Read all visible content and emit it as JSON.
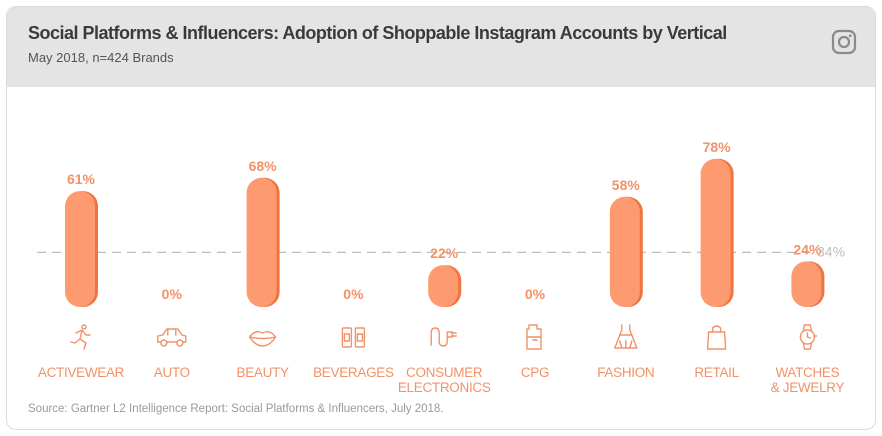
{
  "header": {
    "title": "Social Platforms & Influencers: Adoption of Shoppable Instagram Accounts by Vertical",
    "subtitle": "May 2018, n=424 Brands"
  },
  "footer": {
    "source": "Source: Gartner L2 Intelligence Report: Social Platforms & Influencers, July 2018."
  },
  "colors": {
    "bar": "#fd9a6f",
    "bar_shadow": "#f0743f",
    "label": "#f29268",
    "reference": "#bdbdbd"
  },
  "chart_data": {
    "type": "bar",
    "categories": [
      [
        "ACTIVEWEAR"
      ],
      [
        "AUTO"
      ],
      [
        "BEAUTY"
      ],
      [
        "BEVERAGES"
      ],
      [
        "CONSUMER",
        "ELECTRONICS"
      ],
      [
        "CPG"
      ],
      [
        "FASHION"
      ],
      [
        "RETAIL"
      ],
      [
        "WATCHES",
        "& JEWELRY"
      ]
    ],
    "values": [
      61,
      0,
      68,
      0,
      22,
      0,
      58,
      78,
      24
    ],
    "value_labels": [
      "61%",
      "0%",
      "68%",
      "0%",
      "22%",
      "0%",
      "58%",
      "78%",
      "24%"
    ],
    "icons": [
      "runner-icon",
      "car-icon",
      "lips-icon",
      "cans-icon",
      "plug-icon",
      "detergent-bottle-icon",
      "dress-icon",
      "shopping-bag-icon",
      "watch-icon"
    ],
    "reference_line": {
      "value": 34,
      "label": "34%"
    },
    "ylim": [
      0,
      100
    ],
    "grid": false,
    "legend": "none"
  }
}
